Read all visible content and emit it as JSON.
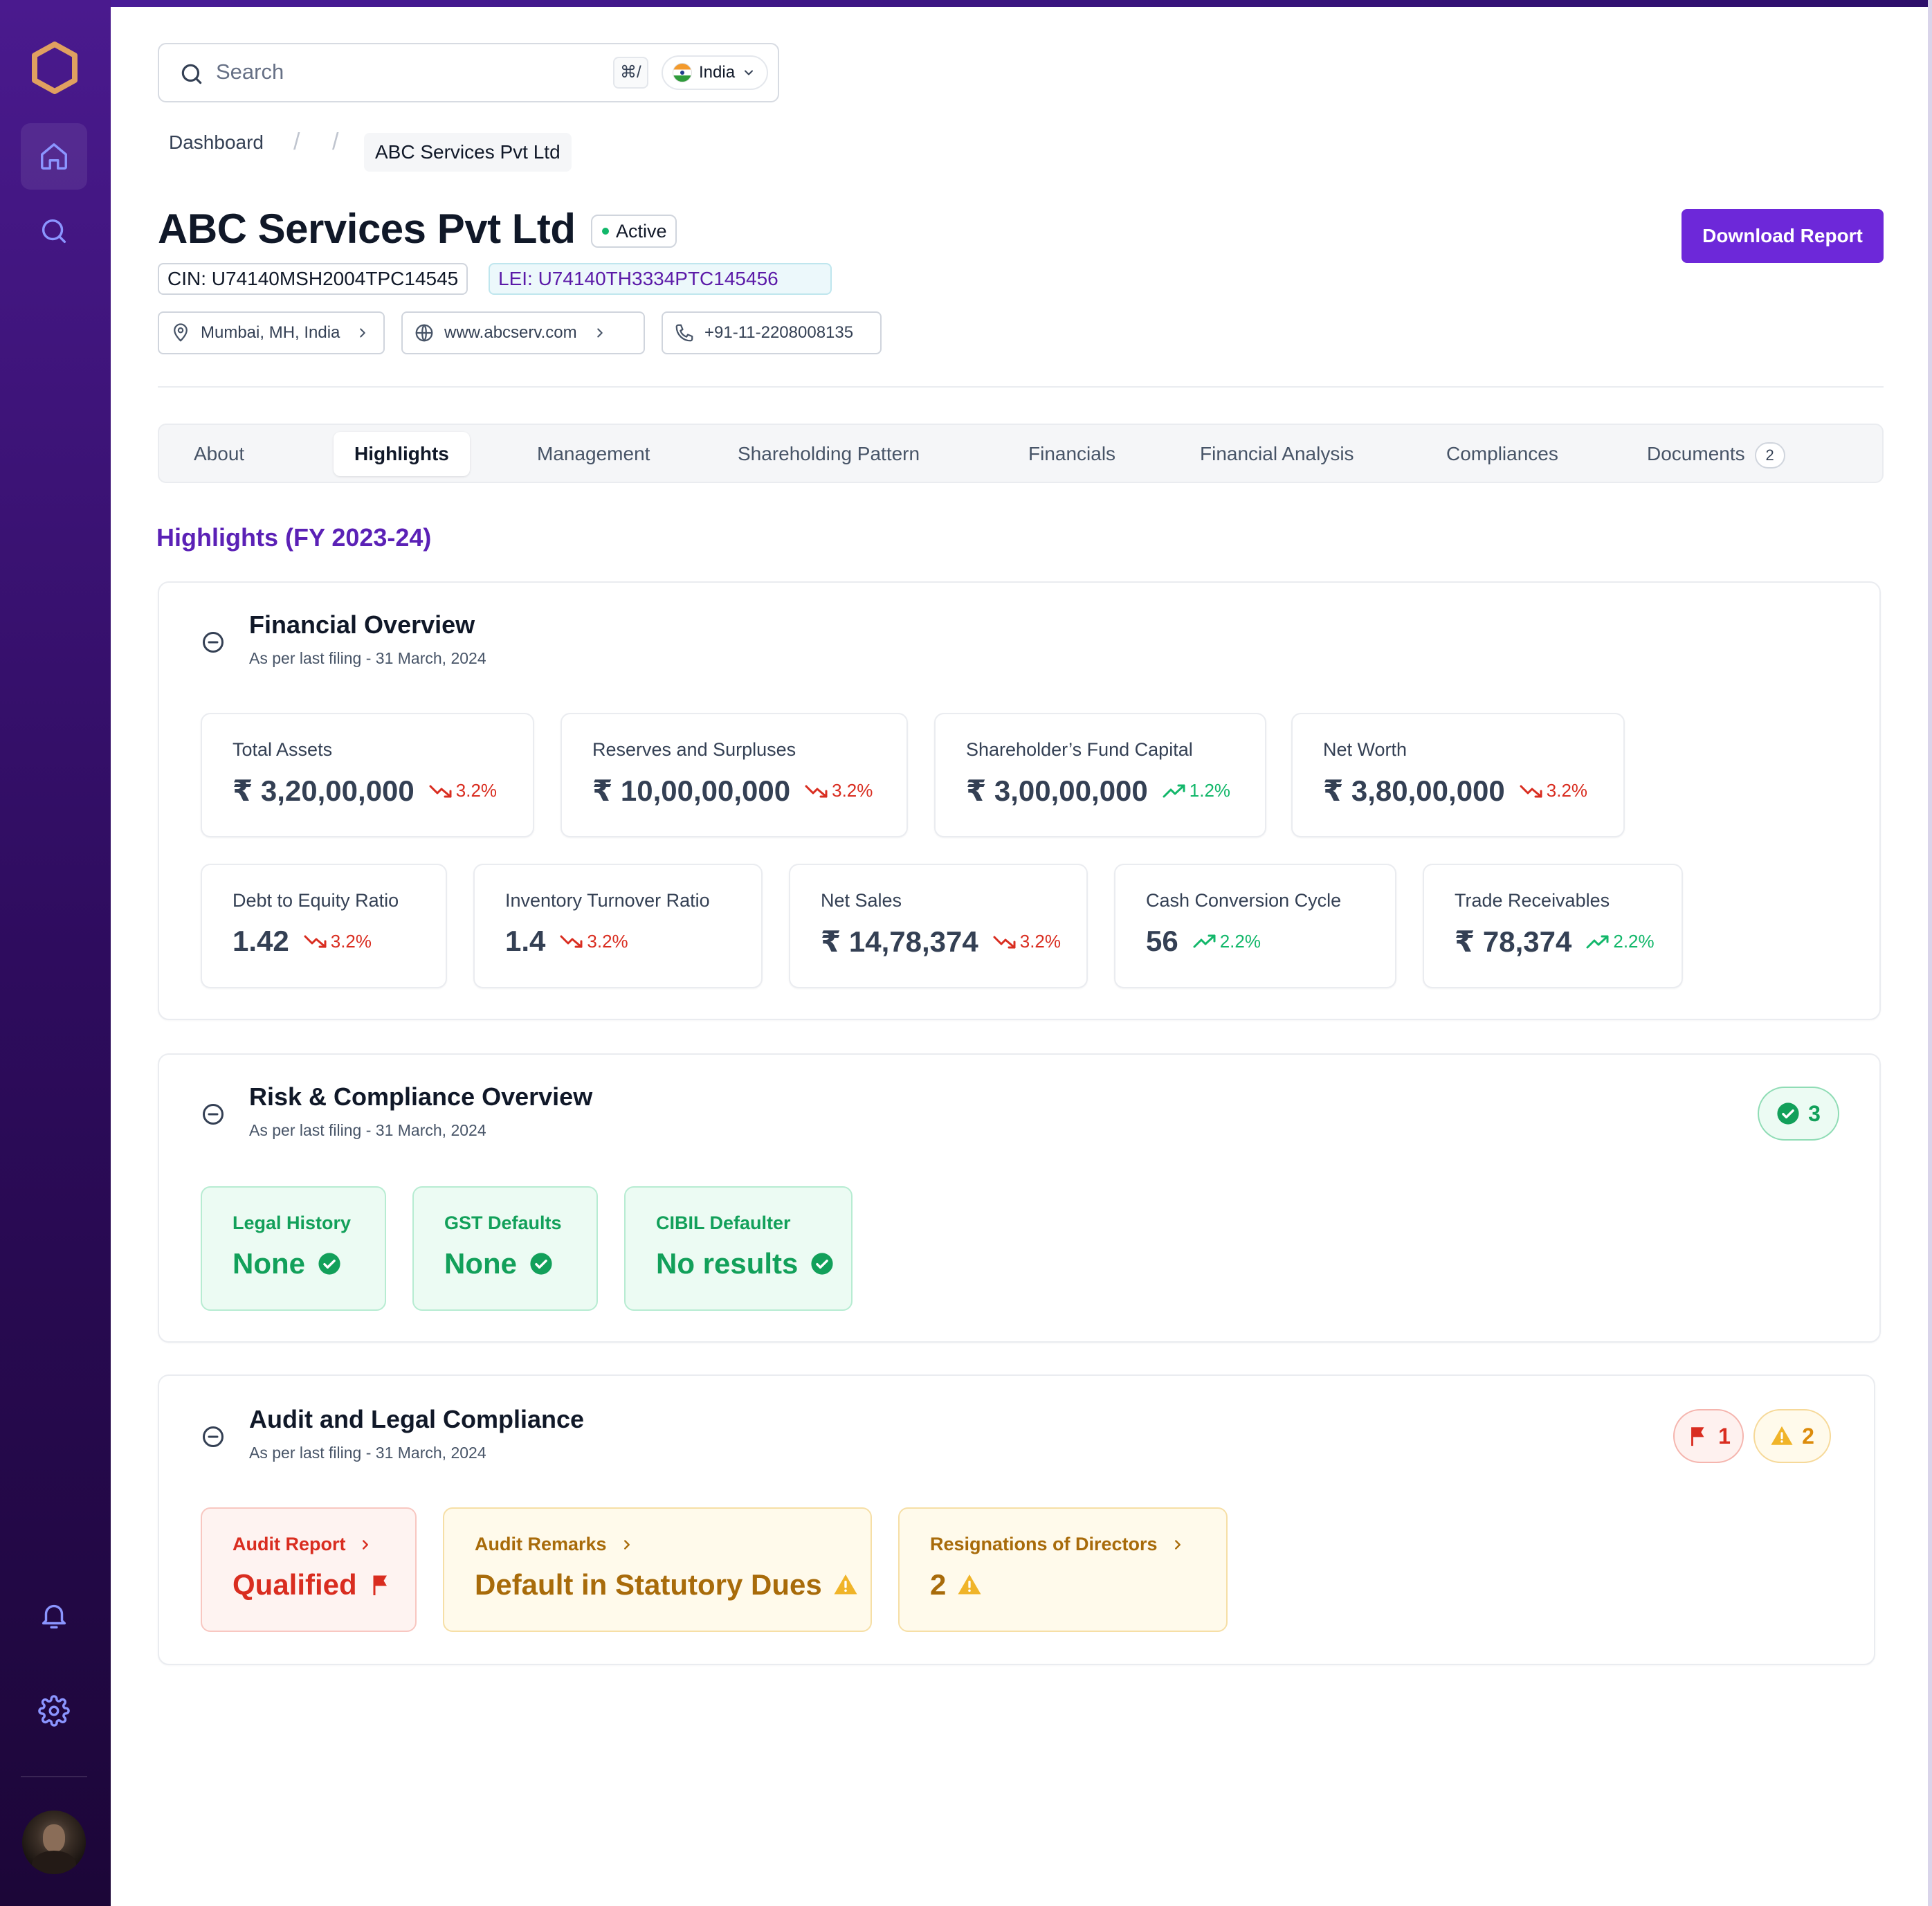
{
  "search": {
    "placeholder": "Search",
    "shortcut": "⌘/",
    "country": "India"
  },
  "breadcrumb": {
    "root": "Dashboard",
    "current": "ABC Services Pvt Ltd"
  },
  "company": {
    "name": "ABC Services Pvt Ltd",
    "status": "Active",
    "cin": "CIN: U74140MSH2004TPC14545",
    "lei": "LEI: U74140TH3334PTC145456",
    "location": "Mumbai, MH, India",
    "website": "www.abcserv.com",
    "phone": "+91-11-2208008135"
  },
  "actions": {
    "download": "Download Report"
  },
  "tabs": [
    {
      "label": "About"
    },
    {
      "label": "Highlights"
    },
    {
      "label": "Management"
    },
    {
      "label": "Shareholding Pattern"
    },
    {
      "label": "Financials"
    },
    {
      "label": "Financial Analysis"
    },
    {
      "label": "Compliances"
    },
    {
      "label": "Documents",
      "count": "2"
    }
  ],
  "highlights_title": "Highlights (FY 2023-24)",
  "financial": {
    "title": "Financial Overview",
    "subtitle": "As per last filing - 31 March, 2024",
    "metrics": [
      {
        "label": "Total Assets",
        "value": "₹ 3,20,00,000",
        "change": "3.2%",
        "direction": "down"
      },
      {
        "label": "Reserves and Surpluses",
        "value": "₹ 10,00,00,000",
        "change": "3.2%",
        "direction": "down"
      },
      {
        "label": "Shareholder’s Fund Capital",
        "value": "₹ 3,00,00,000",
        "change": "1.2%",
        "direction": "up"
      },
      {
        "label": "Net Worth",
        "value": "₹ 3,80,00,000",
        "change": "3.2%",
        "direction": "down"
      },
      {
        "label": "Debt to Equity Ratio",
        "value": "1.42",
        "change": "3.2%",
        "direction": "down"
      },
      {
        "label": "Inventory Turnover Ratio",
        "value": "1.4",
        "change": "3.2%",
        "direction": "down"
      },
      {
        "label": "Net Sales",
        "value": "₹ 14,78,374",
        "change": "3.2%",
        "direction": "down"
      },
      {
        "label": "Cash Conversion Cycle",
        "value": "56",
        "change": "2.2%",
        "direction": "up"
      },
      {
        "label": "Trade Receivables",
        "value": "₹ 78,374",
        "change": "2.2%",
        "direction": "up"
      }
    ]
  },
  "risk": {
    "title": "Risk & Compliance Overview",
    "subtitle": "As per last filing - 31 March, 2024",
    "badge_count": "3",
    "items": [
      {
        "label": "Legal History",
        "value": "None"
      },
      {
        "label": "GST Defaults",
        "value": "None"
      },
      {
        "label": "CIBIL Defaulter",
        "value": "No results"
      }
    ]
  },
  "audit": {
    "title": "Audit and Legal Compliance",
    "subtitle": "As per last filing - 31 March, 2024",
    "flag_count": "1",
    "warning_count": "2",
    "items": [
      {
        "label": "Audit Report",
        "value": "Qualified",
        "severity": "red"
      },
      {
        "label": "Audit Remarks",
        "value": "Default in Statutory Dues",
        "severity": "amber"
      },
      {
        "label": "Resignations of Directors",
        "value": "2",
        "severity": "amber"
      }
    ]
  },
  "colors": {
    "accent": "#6d28d9",
    "success": "#12a05a",
    "danger": "#d92d20",
    "warning": "#dc8b0b"
  }
}
